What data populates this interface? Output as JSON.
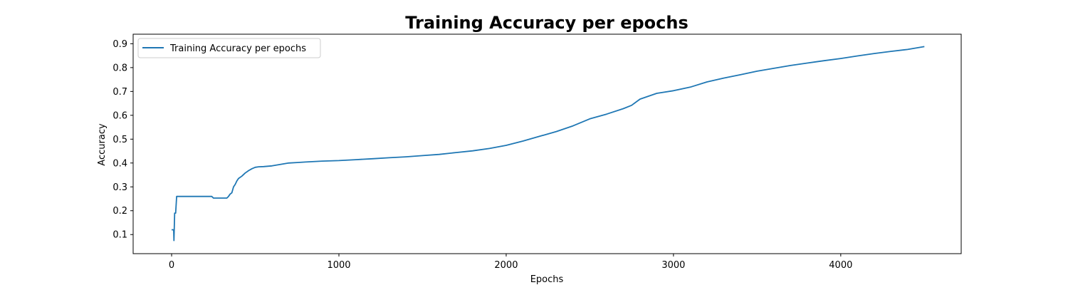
{
  "chart_data": {
    "type": "line",
    "title": "Training Accuracy per epochs",
    "xlabel": "Epochs",
    "ylabel": "Accuracy",
    "xlim": [
      -230,
      4720
    ],
    "ylim": [
      0.02,
      0.94
    ],
    "xticks": [
      0,
      1000,
      2000,
      3000,
      4000
    ],
    "xtick_labels": [
      "0",
      "1000",
      "2000",
      "3000",
      "4000"
    ],
    "yticks": [
      0.1,
      0.2,
      0.3,
      0.4,
      0.5,
      0.6,
      0.7,
      0.8,
      0.9
    ],
    "ytick_labels": [
      "0.1",
      "0.2",
      "0.3",
      "0.4",
      "0.5",
      "0.6",
      "0.7",
      "0.8",
      "0.9"
    ],
    "grid": false,
    "legend_position": "top-left",
    "colors": {
      "series": "#1f77b4",
      "axes": "#000000",
      "background": "#ffffff"
    },
    "series": [
      {
        "name": "Training Accuracy per epochs",
        "x": [
          0,
          12,
          14,
          18,
          24,
          30,
          240,
          250,
          330,
          340,
          350,
          360,
          370,
          380,
          390,
          400,
          420,
          440,
          460,
          480,
          500,
          520,
          550,
          600,
          650,
          700,
          750,
          800,
          900,
          1000,
          1100,
          1200,
          1300,
          1400,
          1500,
          1600,
          1700,
          1800,
          1900,
          2000,
          2100,
          2200,
          2300,
          2400,
          2500,
          2600,
          2700,
          2750,
          2800,
          2900,
          3000,
          3100,
          3200,
          3300,
          3400,
          3500,
          3600,
          3700,
          3800,
          3900,
          4000,
          4100,
          4200,
          4300,
          4400,
          4500
        ],
        "y": [
          0.12,
          0.12,
          0.075,
          0.19,
          0.19,
          0.26,
          0.26,
          0.253,
          0.253,
          0.26,
          0.27,
          0.275,
          0.3,
          0.31,
          0.325,
          0.335,
          0.345,
          0.358,
          0.368,
          0.376,
          0.382,
          0.384,
          0.385,
          0.388,
          0.394,
          0.4,
          0.402,
          0.404,
          0.408,
          0.41,
          0.414,
          0.418,
          0.422,
          0.426,
          0.431,
          0.436,
          0.444,
          0.451,
          0.461,
          0.474,
          0.492,
          0.512,
          0.532,
          0.556,
          0.585,
          0.605,
          0.628,
          0.642,
          0.668,
          0.692,
          0.703,
          0.718,
          0.74,
          0.756,
          0.77,
          0.785,
          0.797,
          0.809,
          0.819,
          0.829,
          0.838,
          0.849,
          0.859,
          0.868,
          0.876,
          0.888
        ]
      }
    ]
  }
}
